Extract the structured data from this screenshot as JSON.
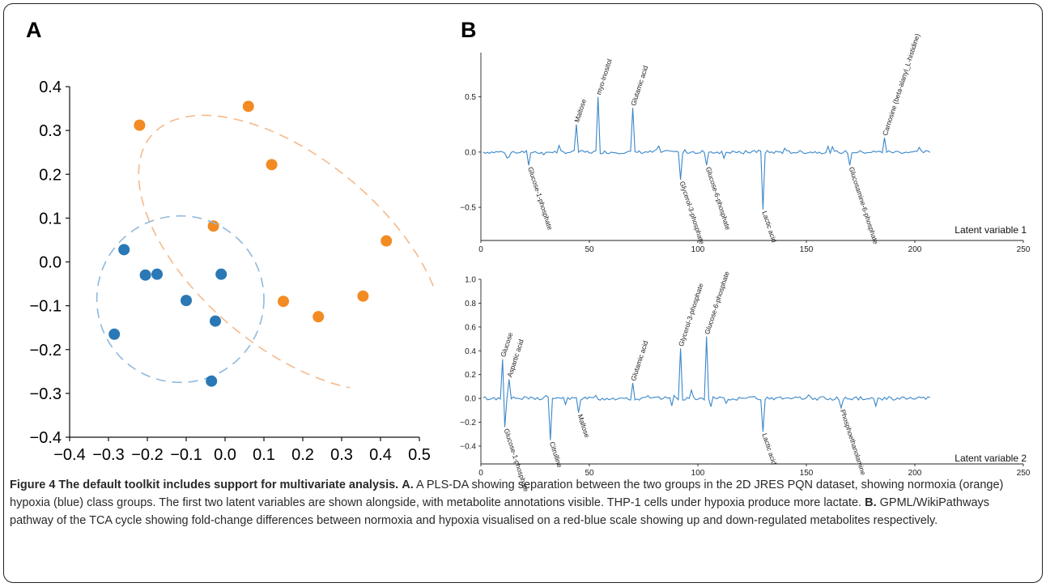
{
  "panel_labels": [
    "A",
    "B"
  ],
  "chart_data": [
    {
      "type": "scatter",
      "id": "A",
      "title": "",
      "xlabel": "",
      "ylabel": "",
      "xlim": [
        -0.4,
        0.5
      ],
      "ylim": [
        -0.4,
        0.4
      ],
      "xticks": [
        "−0.4",
        "−0.3",
        "−0.2",
        "−0.1",
        "0.0",
        "0.1",
        "0.2",
        "0.3",
        "0.4",
        "0.5"
      ],
      "yticks": [
        "0.4",
        "0.3",
        "0.2",
        "0.1",
        "0.0",
        "−0.1",
        "−0.2",
        "−0.3",
        "−0.4"
      ],
      "grid": false,
      "series": [
        {
          "color": "#f28b22",
          "points": [
            [
              -0.22,
              0.312
            ],
            [
              0.06,
              0.355
            ],
            [
              0.12,
              0.222
            ],
            [
              -0.03,
              0.082
            ],
            [
              0.415,
              0.048
            ],
            [
              0.15,
              -0.09
            ],
            [
              0.24,
              -0.125
            ],
            [
              0.355,
              -0.078
            ]
          ],
          "ellipse": {
            "cx": 0.17,
            "cy": 0.02,
            "rx": 0.47,
            "ry": 0.215,
            "angle_deg": 40,
            "color": "#f5b98a"
          }
        },
        {
          "color": "#2a78b5",
          "points": [
            [
              -0.26,
              0.028
            ],
            [
              -0.205,
              -0.03
            ],
            [
              -0.175,
              -0.028
            ],
            [
              -0.1,
              -0.088
            ],
            [
              -0.01,
              -0.028
            ],
            [
              -0.285,
              -0.165
            ],
            [
              -0.025,
              -0.135
            ],
            [
              -0.035,
              -0.272
            ]
          ],
          "ellipse": {
            "cx": -0.115,
            "cy": -0.085,
            "rx": 0.215,
            "ry": 0.19,
            "angle_deg": 0,
            "color": "#8fb8dc"
          }
        }
      ]
    },
    {
      "type": "line",
      "id": "B1",
      "label": "Latent variable 1",
      "xlim": [
        0,
        250
      ],
      "ylim": [
        -0.8,
        0.9
      ],
      "xticks": [
        0,
        50,
        100,
        150,
        200,
        250
      ],
      "yticks": [
        "0.5",
        "0.0",
        "−0.5"
      ],
      "ytick_values": [
        0.5,
        0.0,
        -0.5
      ],
      "color": "#3a87c8",
      "spikes": [
        {
          "x": 22,
          "y": -0.12,
          "label": "Glucose-1-phosphate"
        },
        {
          "x": 44,
          "y": 0.25,
          "label": "Maltose"
        },
        {
          "x": 54,
          "y": 0.5,
          "label": "myo-Inositol"
        },
        {
          "x": 70,
          "y": 0.4,
          "label": "Glutamic acid"
        },
        {
          "x": 92,
          "y": -0.25,
          "label": "Glycerol-3-phosphate"
        },
        {
          "x": 104,
          "y": -0.12,
          "label": "Glucose-6-phosphate"
        },
        {
          "x": 130,
          "y": -0.52,
          "label": "Lactic acid"
        },
        {
          "x": 170,
          "y": -0.12,
          "label": "Glucosamine-6-phosphate"
        },
        {
          "x": 186,
          "y": 0.13,
          "label": "Carnosine (beta-alanyl_L-histidine)"
        }
      ]
    },
    {
      "type": "line",
      "id": "B2",
      "label": "Latent variable 2",
      "xlim": [
        0,
        250
      ],
      "ylim": [
        -0.55,
        1.0
      ],
      "xticks": [
        0,
        50,
        100,
        150,
        200,
        250
      ],
      "yticks": [
        "1.0",
        "0.8",
        "0.6",
        "0.4",
        "0.2",
        "0.0",
        "−0.2",
        "−0.4"
      ],
      "ytick_values": [
        1.0,
        0.8,
        0.6,
        0.4,
        0.2,
        0.0,
        -0.2,
        -0.4
      ],
      "color": "#3a87c8",
      "spikes": [
        {
          "x": 10,
          "y": 0.33,
          "label": "Glucose"
        },
        {
          "x": 13,
          "y": 0.16,
          "label": "Aspartic acid"
        },
        {
          "x": 11,
          "y": -0.24,
          "label": "Glucose-1-phosphate"
        },
        {
          "x": 32,
          "y": -0.35,
          "label": "Citrulline"
        },
        {
          "x": 45,
          "y": -0.12,
          "label": "Maltose"
        },
        {
          "x": 70,
          "y": 0.13,
          "label": "Glutamic acid"
        },
        {
          "x": 92,
          "y": 0.42,
          "label": "Glycerol-3-phosphate"
        },
        {
          "x": 104,
          "y": 0.52,
          "label": "Glucose-6-phosphate"
        },
        {
          "x": 130,
          "y": -0.28,
          "label": "Lactic acid"
        },
        {
          "x": 166,
          "y": -0.08,
          "label": "Phosphoethanolamine"
        }
      ]
    }
  ],
  "caption": {
    "title": "Figure 4 The default toolkit includes support for multivariate analysis.",
    "a_label": "A.",
    "a_text": " A PLS-DA showing separation between the two groups in the 2D JRES PQN dataset, showing normoxia (orange) hypoxia (blue) class groups. The first two latent variables are shown alongside, with metabolite annotations visible. THP-1 cells under hypoxia produce more lactate. ",
    "b_label": "B.",
    "b_text": " GPML/WikiPathways pathway of the TCA cycle showing fold-change differences between normoxia and hypoxia visualised on a red-blue scale showing up and down-regulated metabolites respectively."
  }
}
